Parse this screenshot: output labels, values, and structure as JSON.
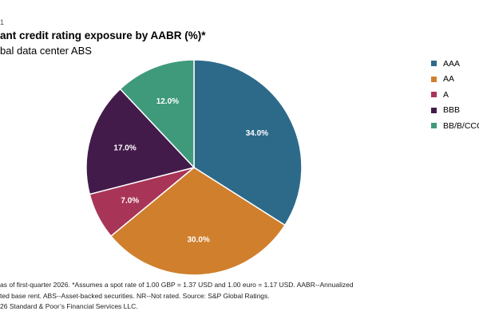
{
  "figure_number": "1",
  "chart_data": {
    "type": "pie",
    "title": "ant credit rating exposure by AABR (%)*",
    "subtitle": "bal data center ABS",
    "slices": [
      {
        "label": "AAA",
        "value": 34.0,
        "value_label": "34.0%",
        "color": "#2d6a8a"
      },
      {
        "label": "AA",
        "value": 30.0,
        "value_label": "30.0%",
        "color": "#d07f2d"
      },
      {
        "label": "A",
        "value": 7.0,
        "value_label": "7.0%",
        "color": "#a83558"
      },
      {
        "label": "BBB",
        "value": 17.0,
        "value_label": "17.0%",
        "color": "#431b4b"
      },
      {
        "label": "BB/B/CCC",
        "value": 12.0,
        "value_label": "12.0%",
        "color": "#3f9a7c"
      }
    ],
    "legend_position": "right"
  },
  "footnotes": [
    "as of first-quarter 2026. *Assumes a spot rate of 1.00 GBP = 1.37 USD and 1.00 euro = 1.17 USD. AABR--Annualized",
    "ted base rent. ABS--Asset-backed securities. NR--Not rated. Source: S&P Global Ratings.",
    "26 Standard & Poor’s Financial Services LLC."
  ]
}
